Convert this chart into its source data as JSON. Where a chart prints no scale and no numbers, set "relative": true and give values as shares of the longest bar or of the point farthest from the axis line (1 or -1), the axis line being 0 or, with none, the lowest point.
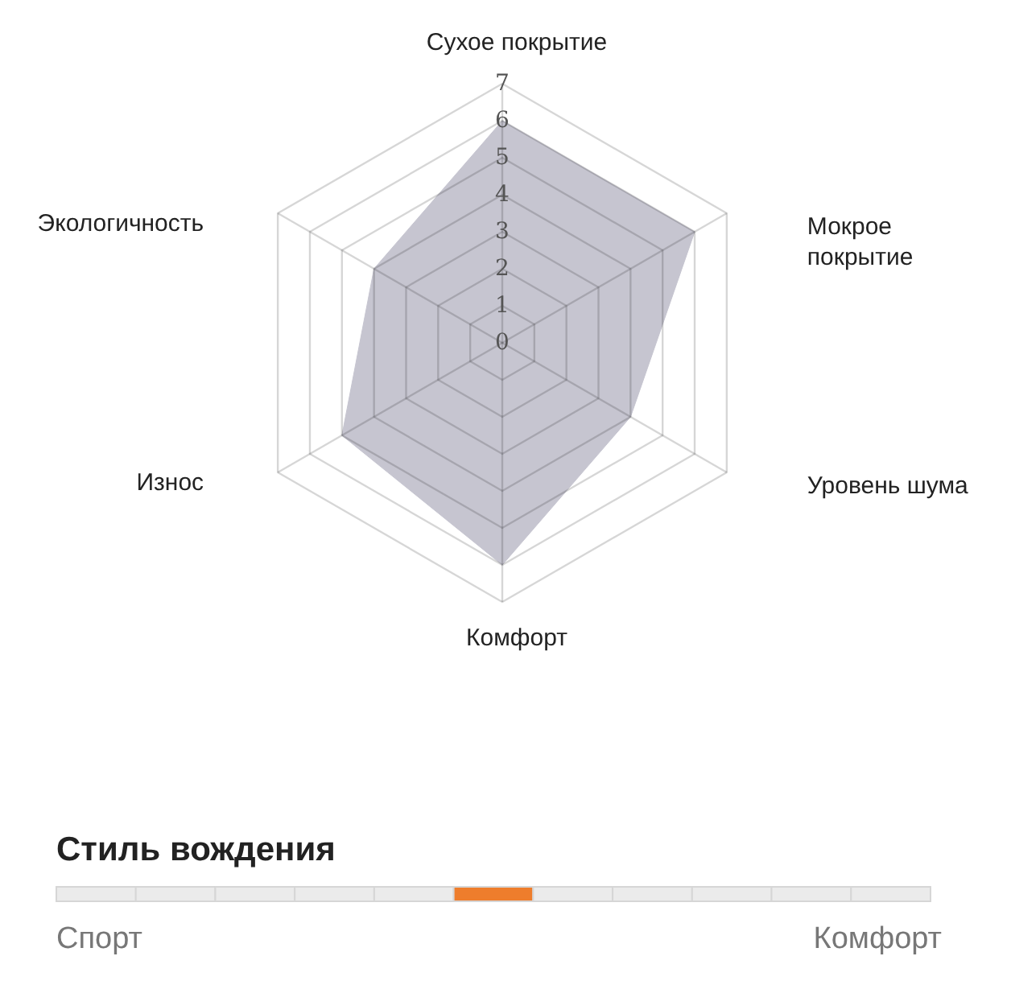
{
  "chart_data": [
    {
      "type": "radar",
      "categories": [
        "Сухое покрытие",
        "Мокрое\nпокрытие",
        "Уровень шума",
        "Комфорт",
        "Износ",
        "Экологичность"
      ],
      "series": [
        {
          "color": "#c6c5d0",
          "values": [
            6,
            6,
            4,
            6,
            5,
            4
          ]
        }
      ],
      "ylim": [
        0,
        7
      ],
      "yticks": [
        0,
        1,
        2,
        3,
        4,
        5,
        6,
        7
      ],
      "grid": true
    },
    {
      "type": "bar",
      "relative": true,
      "title": "Стиль вождения",
      "categories": [
        null,
        null,
        null,
        null,
        null,
        null,
        null,
        null,
        null,
        null,
        null
      ],
      "values": [
        1,
        1,
        1,
        1,
        1,
        1,
        1,
        1,
        1,
        1,
        1
      ],
      "colors": [
        "#ebebeb",
        "#ebebeb",
        "#ebebeb",
        "#ebebeb",
        "#ebebeb",
        "#ee7d2c",
        "#ebebeb",
        "#ebebeb",
        "#ebebeb",
        "#ebebeb",
        "#ebebeb"
      ],
      "annotations": [
        "Спорт",
        "Комфорт"
      ]
    }
  ]
}
